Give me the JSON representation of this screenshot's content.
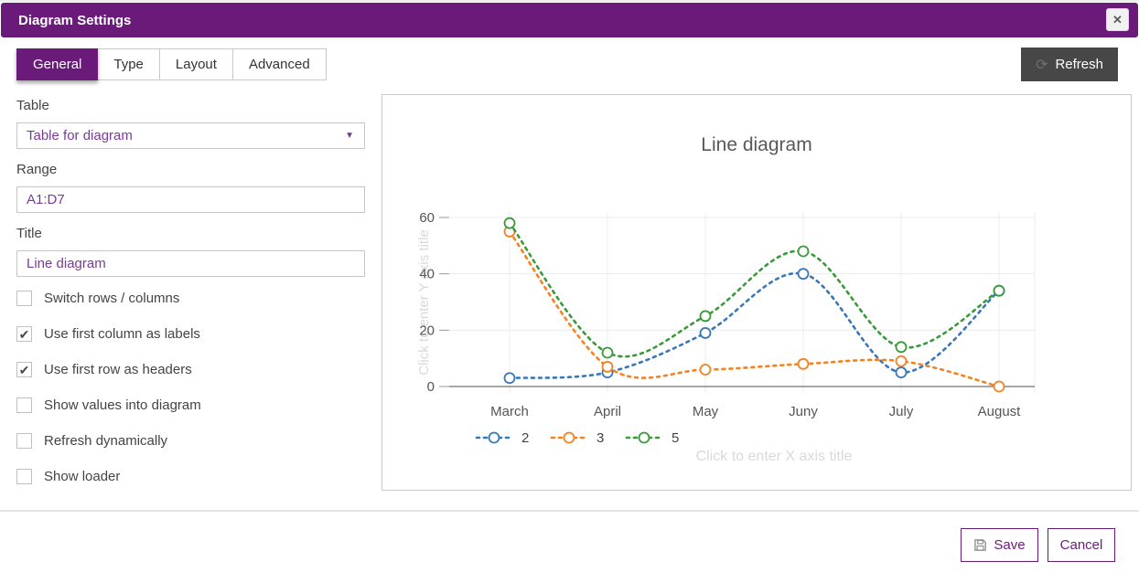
{
  "titlebar": {
    "title": "Diagram Settings"
  },
  "icons": {
    "close": "✕",
    "refresh": "⟳",
    "check": "✔",
    "dropdown_arrow": "▼"
  },
  "tabs": [
    {
      "label": "General",
      "active": true
    },
    {
      "label": "Type",
      "active": false
    },
    {
      "label": "Layout",
      "active": false
    },
    {
      "label": "Advanced",
      "active": false
    }
  ],
  "refresh": {
    "label": "Refresh"
  },
  "form": {
    "table": {
      "label": "Table",
      "value": "Table for diagram"
    },
    "range": {
      "label": "Range",
      "value": "A1:D7"
    },
    "title": {
      "label": "Title",
      "value": "Line diagram"
    },
    "checkboxes": [
      {
        "label": "Switch rows / columns",
        "checked": false
      },
      {
        "label": "Use first column as labels",
        "checked": true
      },
      {
        "label": "Use first row as headers",
        "checked": true
      },
      {
        "label": "Show values into diagram",
        "checked": false
      },
      {
        "label": "Refresh dynamically",
        "checked": false
      },
      {
        "label": "Show loader",
        "checked": false
      }
    ]
  },
  "chart_data": {
    "type": "line",
    "title": "Line diagram",
    "categories": [
      "March",
      "April",
      "May",
      "Juny",
      "July",
      "August"
    ],
    "series": [
      {
        "name": "2",
        "color": "#3a77b8",
        "values": [
          3,
          5,
          19,
          40,
          5,
          34
        ]
      },
      {
        "name": "3",
        "color": "#f58220",
        "values": [
          55,
          7,
          6,
          8,
          9,
          0
        ]
      },
      {
        "name": "5",
        "color": "#3a9a3a",
        "values": [
          58,
          12,
          25,
          48,
          14,
          34
        ]
      }
    ],
    "ylim": [
      0,
      60
    ],
    "yticks": [
      0,
      20,
      40,
      60
    ],
    "line_style": "dotted",
    "marker": "open-circle",
    "grid": true,
    "legend_position": "bottom-left",
    "xaxis_placeholder": "Click to enter X axis title",
    "yaxis_placeholder": "Click to enter Y axis title",
    "colors": {
      "axis_text": "#555555",
      "gridline": "#ececec",
      "zero_line": "#4d4d4d",
      "placeholder": "#d9d9d9",
      "title": "#595959"
    }
  },
  "footer": {
    "save_label": "Save",
    "cancel_label": "Cancel"
  }
}
